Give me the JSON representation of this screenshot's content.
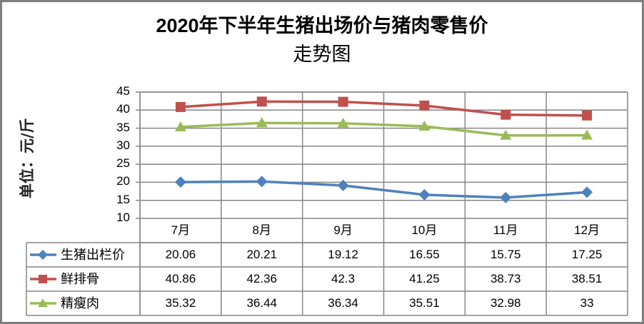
{
  "chart_data": {
    "type": "line",
    "title": "2020年下半年生猪出场价与猪肉零售价走势图",
    "title_lines": [
      "2020年下半年生猪出场价与猪肉零售价",
      "走势图"
    ],
    "xlabel": "",
    "ylabel": "单位：元/斤",
    "ylim": [
      10,
      45
    ],
    "yticks": [
      45,
      40,
      35,
      30,
      25,
      20,
      15,
      10
    ],
    "grid": true,
    "legend_position": "data-table",
    "categories": [
      "7月",
      "8月",
      "9月",
      "10月",
      "11月",
      "12月"
    ],
    "series": [
      {
        "name": "生猪出栏价",
        "color": "#4f81bd",
        "marker": "diamond",
        "values": [
          20.06,
          20.21,
          19.12,
          16.55,
          15.75,
          17.25
        ],
        "labels": [
          "20.06",
          "20.21",
          "19.12",
          "16.55",
          "15.75",
          "17.25"
        ]
      },
      {
        "name": "鲜排骨",
        "color": "#c0504d",
        "marker": "square",
        "values": [
          40.86,
          42.36,
          42.3,
          41.25,
          38.73,
          38.51
        ],
        "labels": [
          "40.86",
          "42.36",
          "42.3",
          "41.25",
          "38.73",
          "38.51"
        ]
      },
      {
        "name": "精瘦肉",
        "color": "#9bbb59",
        "marker": "triangle",
        "values": [
          35.32,
          36.44,
          36.34,
          35.51,
          32.98,
          33
        ],
        "labels": [
          "35.32",
          "36.44",
          "36.34",
          "35.51",
          "32.98",
          "33"
        ]
      }
    ]
  }
}
